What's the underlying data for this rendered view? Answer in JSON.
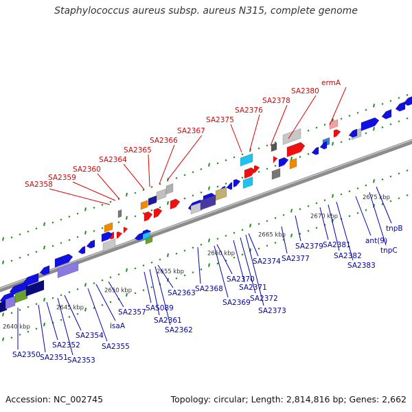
{
  "title": "Staphylococcus aureus subsp. aureus N315, complete genome",
  "accession": "Accession: NC_002745",
  "topology": "Topology: circular; Length: 2,814,816 bp; Genes: 2,662",
  "colors": {
    "backbone": "#8c8c8c",
    "forward_gene": "#1010e0",
    "highlight_gene": "#ee1111",
    "highlight_label": "#dd0000",
    "label": "#0000aa",
    "dots": "#228b22"
  },
  "scale_ticks": [
    "2640 kbp",
    "2645 kbp",
    "2650 kbp",
    "2655 kbp",
    "2660 kbp",
    "2665 kbp",
    "2670 kbp",
    "2675 kbp"
  ],
  "upper_labels": [
    "SA2358",
    "SA2359",
    "SA2360",
    "SA2364",
    "SA2365",
    "SA2366",
    "SA2367",
    "SA2375",
    "SA2376",
    "SA2378",
    "SA2380",
    "ermA"
  ],
  "lower_labels": [
    "SA2350",
    "SA2351",
    "SA2352",
    "SA2353",
    "SA2354",
    "SA2355",
    "isaA",
    "SA2357",
    "SAS089",
    "SA2361",
    "SA2362",
    "SA2363",
    "SA2368",
    "SA2369",
    "SA2370",
    "SA2371",
    "SA2372",
    "SA2373",
    "SA2374",
    "SA2377",
    "SA2379",
    "SA2381",
    "SA2382",
    "SA2383",
    "ant(9)",
    "tnpC",
    "tnpB"
  ]
}
